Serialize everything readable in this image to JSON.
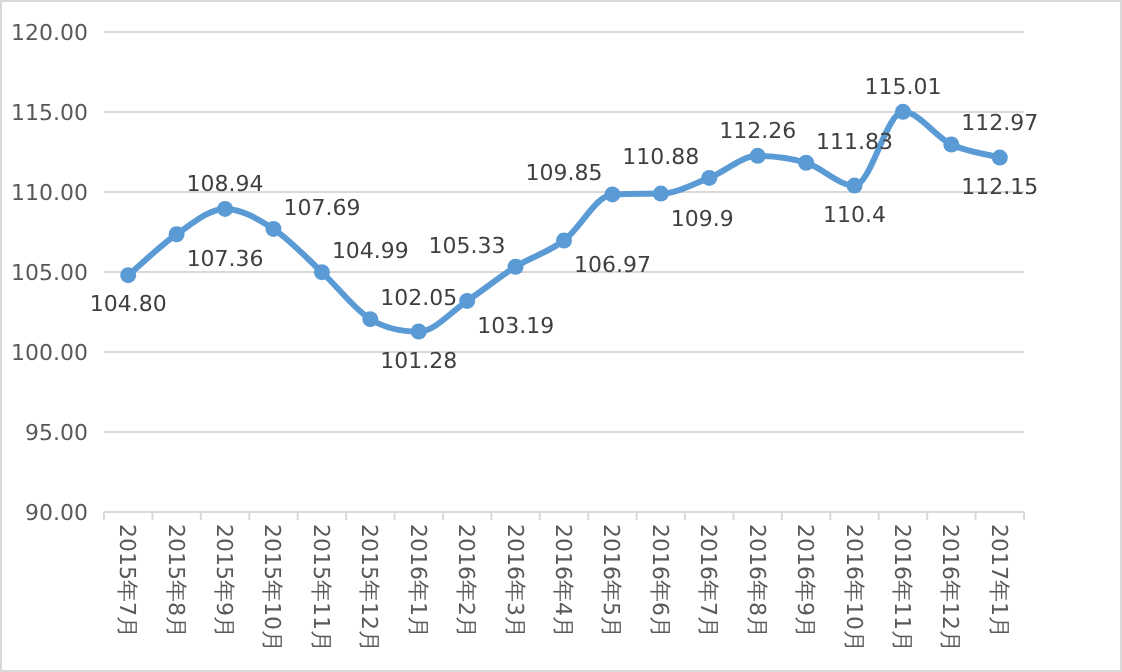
{
  "chart_data": {
    "type": "line",
    "categories": [
      "2015年7月",
      "2015年8月",
      "2015年9月",
      "2015年10月",
      "2015年11月",
      "2015年12月",
      "2016年1月",
      "2016年2月",
      "2016年3月",
      "2016年4月",
      "2016年5月",
      "2016年6月",
      "2016年7月",
      "2016年8月",
      "2016年9月",
      "2016年10月",
      "2016年11月",
      "2016年12月",
      "2017年1月"
    ],
    "series": [
      {
        "color": "#5b9bd5",
        "values": [
          104.8,
          107.36,
          108.94,
          107.69,
          104.99,
          102.05,
          101.28,
          103.19,
          105.33,
          106.97,
          109.85,
          109.9,
          110.88,
          112.26,
          111.83,
          110.4,
          115.01,
          112.97,
          112.15
        ],
        "value_labels": [
          "104.80",
          "107.36",
          "108.94",
          "107.69",
          "104.99",
          "102.05",
          "101.28",
          "103.19",
          "105.33",
          "106.97",
          "109.85",
          "109.9",
          "110.88",
          "112.26",
          "111.83",
          "110.4",
          "115.01",
          "112.97",
          "112.15"
        ]
      }
    ],
    "ylim": [
      90,
      120
    ],
    "yticks": [
      {
        "value": 90,
        "label": "90.00"
      },
      {
        "value": 95,
        "label": "95.00"
      },
      {
        "value": 100,
        "label": "100.00"
      },
      {
        "value": 105,
        "label": "105.00"
      },
      {
        "value": 110,
        "label": "110.00"
      },
      {
        "value": 115,
        "label": "115.00"
      },
      {
        "value": 120,
        "label": "120.00"
      }
    ],
    "grid": "y",
    "marker": "circle",
    "line_style": "solid"
  }
}
